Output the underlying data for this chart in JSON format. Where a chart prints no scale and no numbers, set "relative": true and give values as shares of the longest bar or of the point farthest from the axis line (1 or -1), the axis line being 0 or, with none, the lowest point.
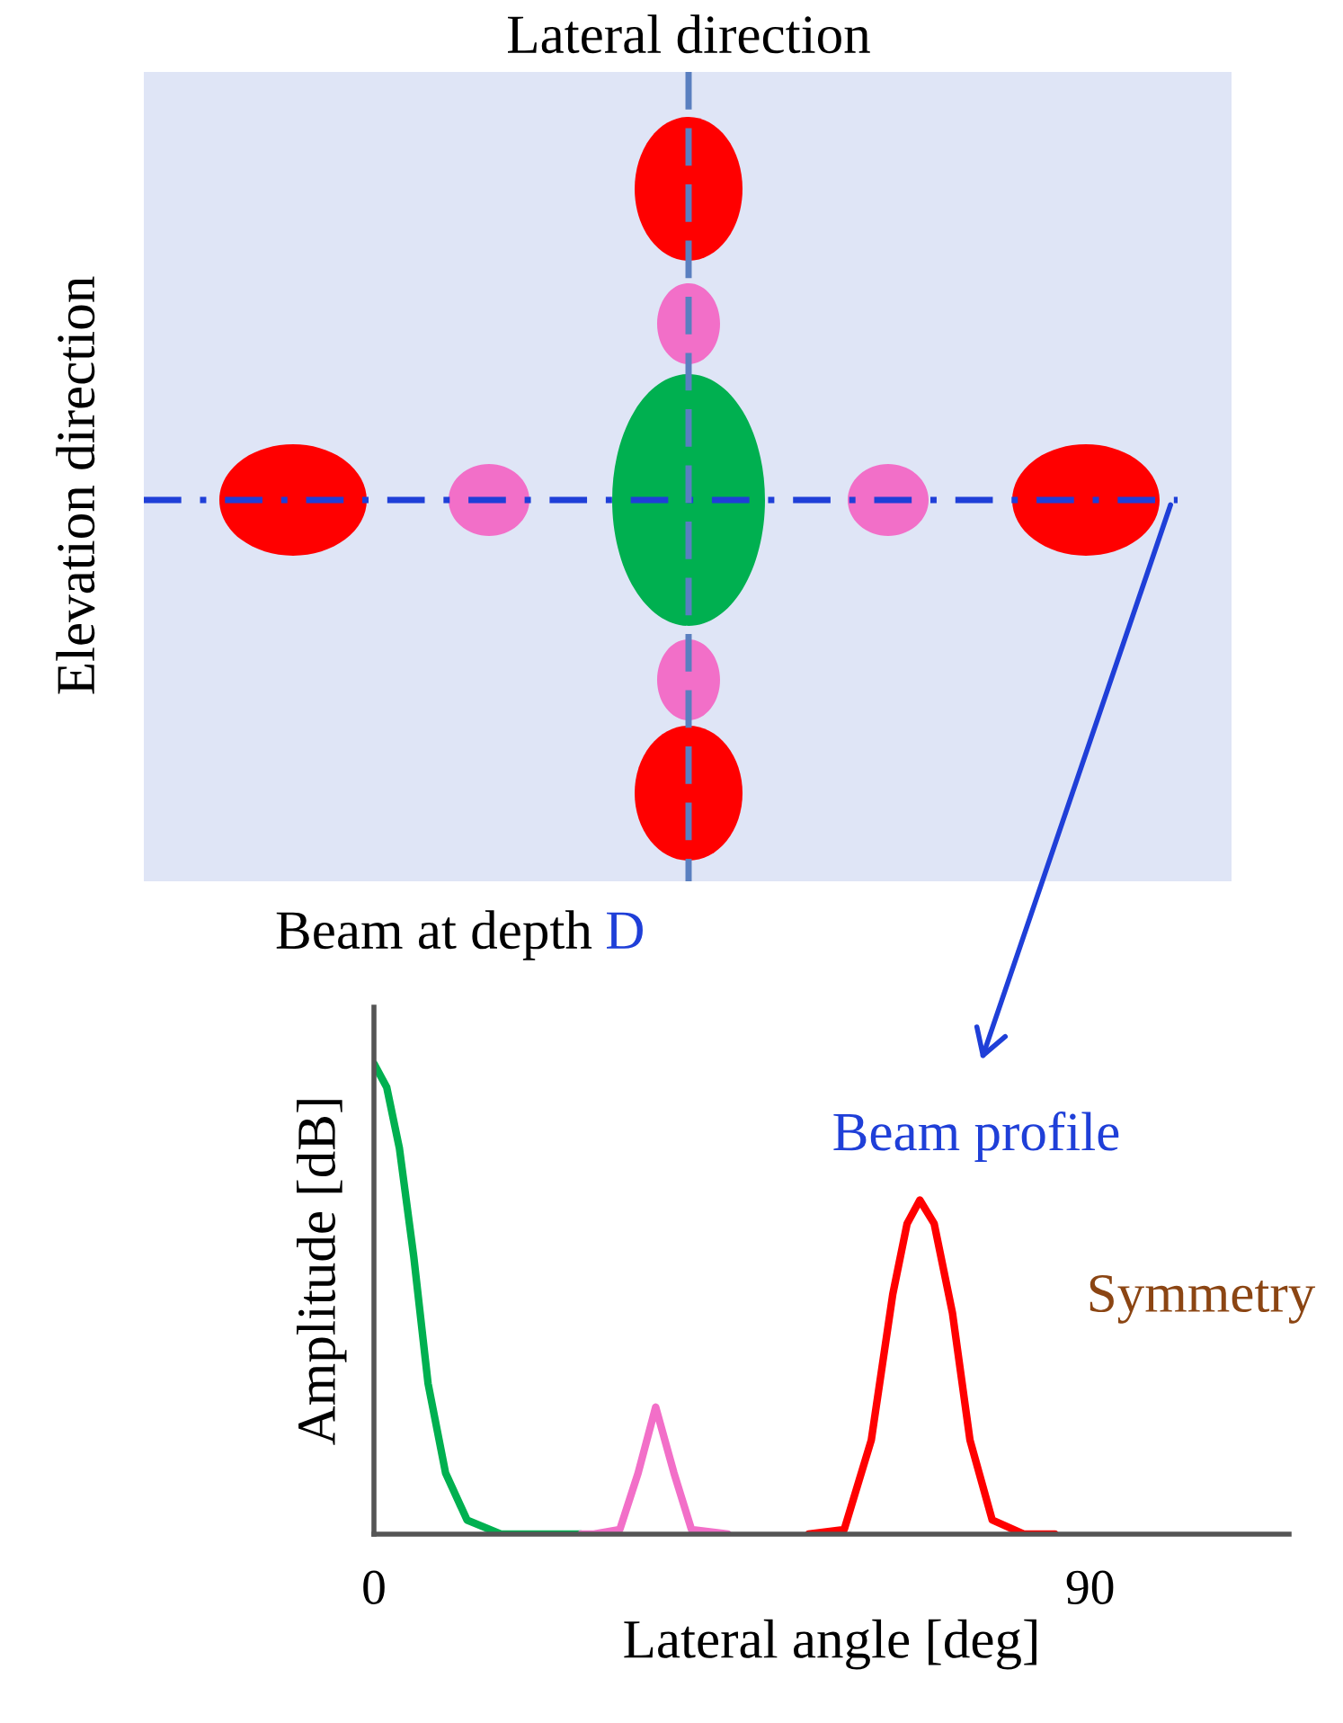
{
  "chart_data": {
    "type": "line",
    "relative": true,
    "xlabel": "Lateral angle [deg]",
    "ylabel": "Amplitude [dB]",
    "xlim": [
      0,
      115
    ],
    "xticks": [
      0,
      90
    ],
    "series": [
      {
        "color": "#00b050",
        "x": [
          0,
          1.6,
          3.2,
          5,
          6.8,
          9,
          11.7,
          16,
          26
        ],
        "values": [
          1.0,
          0.95,
          0.82,
          0.59,
          0.32,
          0.13,
          0.03,
          0,
          0
        ]
      },
      {
        "color": "#f26fc8",
        "x": [
          26,
          27.5,
          30.9,
          33.2,
          35.4,
          37.7,
          39.9,
          44.5
        ],
        "values": [
          0,
          0,
          0.01,
          0.13,
          0.27,
          0.13,
          0.01,
          0
        ]
      },
      {
        "color": "#ff0000",
        "x": [
          54.6,
          59.1,
          62.5,
          65.2,
          67.0,
          68.6,
          70.4,
          72.7,
          74.9,
          77.7,
          81.7,
          85.6
        ],
        "values": [
          0,
          0.01,
          0.2,
          0.51,
          0.66,
          0.71,
          0.66,
          0.47,
          0.2,
          0.03,
          0,
          0
        ]
      }
    ],
    "annotations": [
      "Lateral direction",
      "Elevation direction",
      "Beam at depth D",
      "Beam profile",
      "Symmetry"
    ]
  }
}
